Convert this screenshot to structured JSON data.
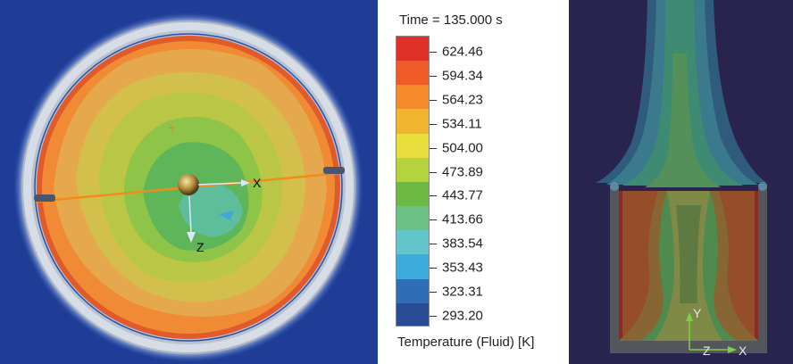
{
  "legend": {
    "time_label": "Time = 135.000 s",
    "values": [
      "624.46",
      "594.34",
      "564.23",
      "534.11",
      "504.00",
      "473.89",
      "443.77",
      "413.66",
      "383.54",
      "353.43",
      "323.31",
      "293.20"
    ],
    "colors": [
      "#e0302a",
      "#ee5a28",
      "#f48a2a",
      "#f2b431",
      "#e8df3c",
      "#b6d23c",
      "#6db944",
      "#6cc187",
      "#62c5c9",
      "#3cacdc",
      "#2f6eb6",
      "#2a4b95"
    ],
    "caption": "Temperature (Fluid) [K]"
  },
  "left_view": {
    "axis_x": "X",
    "axis_z": "Z"
  },
  "right_view": {
    "axis_y": "Y",
    "axis_x": "X",
    "axis_z": "Z"
  }
}
